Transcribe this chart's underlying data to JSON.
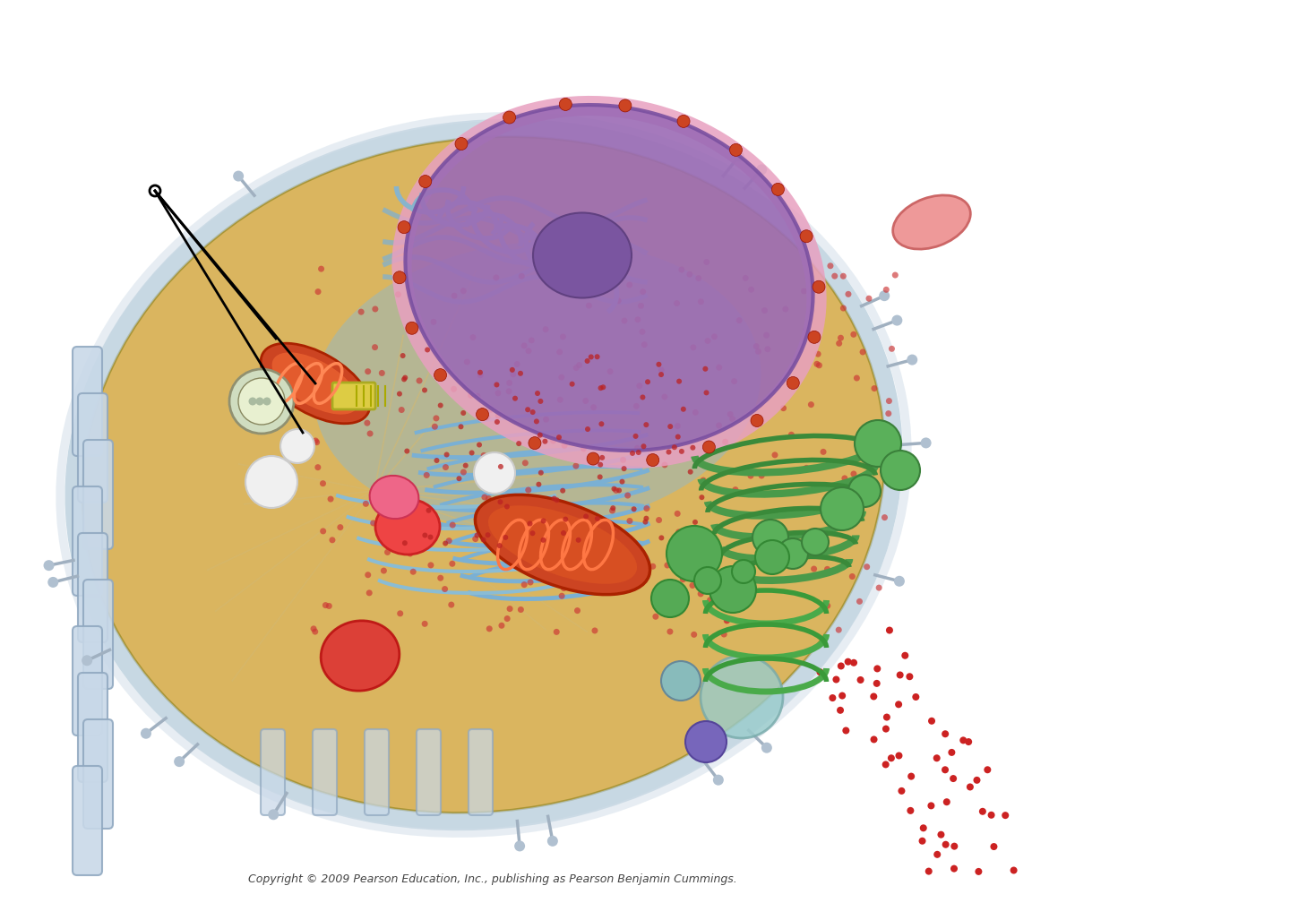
{
  "background_color": "#ffffff",
  "copyright_text": "Copyright © 2009 Pearson Education, Inc., publishing as Pearson Benjamin Cummings.",
  "cell_body_color": "#d4a843",
  "cell_membrane_color": "#b0c8d8",
  "nucleus_color": "#9b6bb5",
  "nucleus_envelope_color": "#e8a0c0",
  "er_color": "#7ab0d4",
  "golgi_color": "#4a9a4a",
  "mitochondria_color": "#cc4422",
  "mitochondria_inner_color": "#ff6633",
  "lysosome_color": "#dd3333",
  "cilia_color": "#c8d8e8",
  "cytoskeleton_lines_color": "#d4b870",
  "small_dots_color": "#cc3333",
  "arrow_color": "#000000",
  "white_sphere_color": "#f0f0f0",
  "green_vesicle_color": "#66bb66",
  "purple_sphere_color": "#8866aa",
  "fig_width": 14.4,
  "fig_height": 10.08
}
